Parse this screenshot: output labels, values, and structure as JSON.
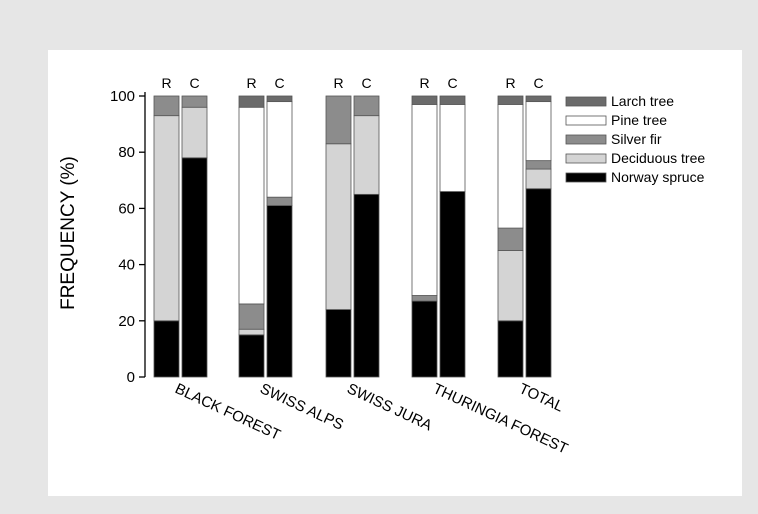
{
  "chart_data": {
    "type": "bar",
    "stacked": true,
    "ylabel": "FREQUENCY (%)",
    "xlabel": "",
    "ylim": [
      0,
      100
    ],
    "yticks": [
      0,
      20,
      40,
      60,
      80,
      100
    ],
    "grid": false,
    "legend_position": "top-right",
    "groups": [
      "BLACK FOREST",
      "SWISS ALPS",
      "SWISS JURA",
      "THURINGIA FOREST",
      "TOTAL"
    ],
    "bar_labels": [
      "R",
      "C"
    ],
    "series_order_bottom_to_top": [
      "Norway spruce",
      "Deciduous tree",
      "Silver fir",
      "Pine tree",
      "Larch tree"
    ],
    "legend_order": [
      "Larch tree",
      "Pine tree",
      "Silver fir",
      "Deciduous tree",
      "Norway spruce"
    ],
    "colors": {
      "Norway spruce": "#000000",
      "Deciduous tree": "#d4d4d4",
      "Silver fir": "#8c8c8c",
      "Pine tree": "#ffffff",
      "Larch tree": "#6b6b6b"
    },
    "bars": [
      {
        "group": "BLACK FOREST",
        "label": "R",
        "values": {
          "Norway spruce": 20,
          "Deciduous tree": 73,
          "Silver fir": 7,
          "Pine tree": 0,
          "Larch tree": 0
        }
      },
      {
        "group": "BLACK FOREST",
        "label": "C",
        "values": {
          "Norway spruce": 78,
          "Deciduous tree": 18,
          "Silver fir": 4,
          "Pine tree": 0,
          "Larch tree": 0
        }
      },
      {
        "group": "SWISS ALPS",
        "label": "R",
        "values": {
          "Norway spruce": 15,
          "Deciduous tree": 2,
          "Silver fir": 9,
          "Pine tree": 70,
          "Larch tree": 4
        }
      },
      {
        "group": "SWISS ALPS",
        "label": "C",
        "values": {
          "Norway spruce": 61,
          "Deciduous tree": 0,
          "Silver fir": 3,
          "Pine tree": 34,
          "Larch tree": 2
        }
      },
      {
        "group": "SWISS JURA",
        "label": "R",
        "values": {
          "Norway spruce": 24,
          "Deciduous tree": 59,
          "Silver fir": 17,
          "Pine tree": 0,
          "Larch tree": 0
        }
      },
      {
        "group": "SWISS JURA",
        "label": "C",
        "values": {
          "Norway spruce": 65,
          "Deciduous tree": 28,
          "Silver fir": 7,
          "Pine tree": 0,
          "Larch tree": 0
        }
      },
      {
        "group": "THURINGIA FOREST",
        "label": "R",
        "values": {
          "Norway spruce": 27,
          "Deciduous tree": 0,
          "Silver fir": 2,
          "Pine tree": 68,
          "Larch tree": 3
        }
      },
      {
        "group": "THURINGIA FOREST",
        "label": "C",
        "values": {
          "Norway spruce": 66,
          "Deciduous tree": 0,
          "Silver fir": 0,
          "Pine tree": 31,
          "Larch tree": 3
        }
      },
      {
        "group": "TOTAL",
        "label": "R",
        "values": {
          "Norway spruce": 20,
          "Deciduous tree": 25,
          "Silver fir": 8,
          "Pine tree": 44,
          "Larch tree": 3
        }
      },
      {
        "group": "TOTAL",
        "label": "C",
        "values": {
          "Norway spruce": 67,
          "Deciduous tree": 7,
          "Silver fir": 3,
          "Pine tree": 21,
          "Larch tree": 2
        }
      }
    ]
  }
}
